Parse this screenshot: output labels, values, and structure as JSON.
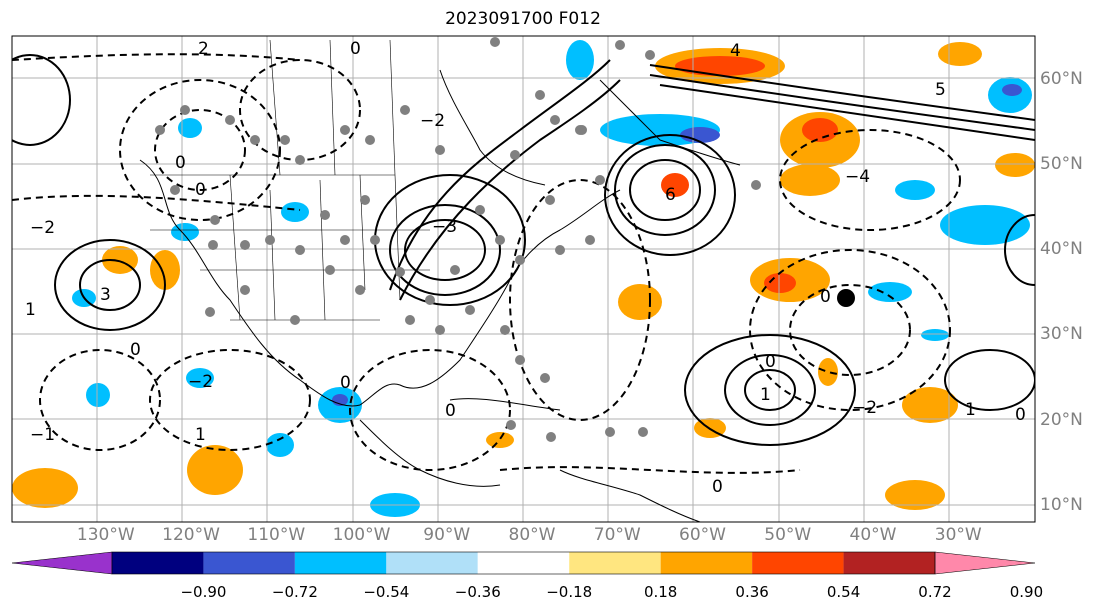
{
  "title": "2023091700 F012",
  "lon_labels": [
    {
      "text": "130°W",
      "lon": -130
    },
    {
      "text": "120°W",
      "lon": -120
    },
    {
      "text": "110°W",
      "lon": -110
    },
    {
      "text": "100°W",
      "lon": -100
    },
    {
      "text": "90°W",
      "lon": -90
    },
    {
      "text": "80°W",
      "lon": -80
    },
    {
      "text": "70°W",
      "lon": -70
    },
    {
      "text": "60°W",
      "lon": -60
    },
    {
      "text": "50°W",
      "lon": -50
    },
    {
      "text": "40°W",
      "lon": -40
    },
    {
      "text": "30°W",
      "lon": -30
    }
  ],
  "lat_labels": [
    {
      "text": "60°N",
      "lat": 60
    },
    {
      "text": "50°N",
      "lat": 50
    },
    {
      "text": "40°N",
      "lat": 40
    },
    {
      "text": "30°N",
      "lat": 30
    },
    {
      "text": "20°N",
      "lat": 20
    },
    {
      "text": "10°N",
      "lat": 10
    }
  ],
  "extent": {
    "lon_min": -141,
    "lon_max": -21,
    "lat_min": 8,
    "lat_max": 65
  },
  "colorbar": {
    "colors": [
      "#9932cc",
      "#00007f",
      "#3a56d1",
      "#00bfff",
      "#b0e0f8",
      "#ffffff",
      "#ffe680",
      "#ffa500",
      "#ff4500",
      "#b22222",
      "#ff88aa"
    ],
    "tick_labels": [
      "−0.90",
      "−0.72",
      "−0.54",
      "−0.36",
      "−0.18",
      "0.18",
      "0.36",
      "0.54",
      "0.72",
      "0.90"
    ]
  },
  "contour_labels": [
    "0",
    "2",
    "4",
    "6",
    "−2",
    "−4",
    "−1",
    "−3",
    "3",
    "5",
    "1"
  ],
  "colors": {
    "grid": "#b0b0b0",
    "contour": "#000000",
    "station_marker": "#808080",
    "storm_marker": "#000000"
  }
}
